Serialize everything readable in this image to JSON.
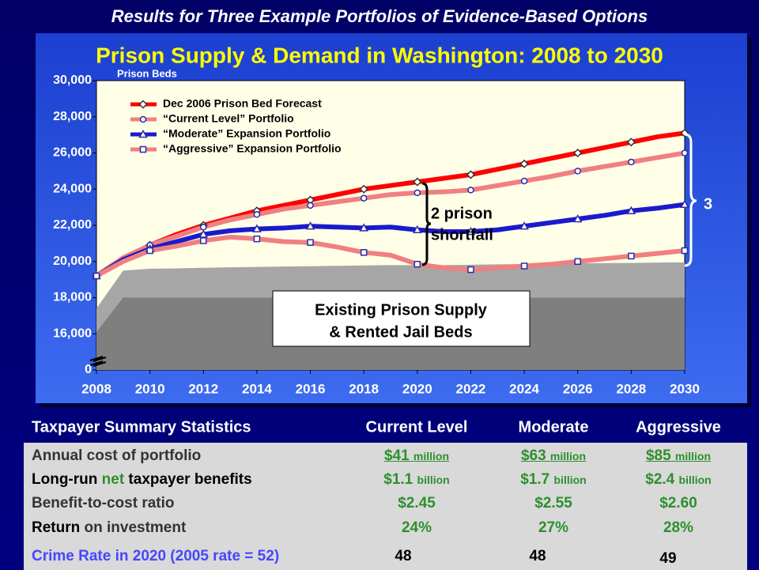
{
  "header": "Results for Three Example Portfolios of Evidence-Based Options",
  "chart_data": {
    "type": "line",
    "title": "Prison Supply & Demand in Washington: 2008 to 2030",
    "y_label": "Prison Beds",
    "x": [
      2008,
      2009,
      2010,
      2011,
      2012,
      2013,
      2014,
      2015,
      2016,
      2017,
      2018,
      2019,
      2020,
      2021,
      2022,
      2023,
      2024,
      2025,
      2026,
      2027,
      2028,
      2029,
      2030
    ],
    "xlim": [
      2008,
      2030
    ],
    "xticks": [
      2008,
      2010,
      2012,
      2014,
      2016,
      2018,
      2020,
      2022,
      2024,
      2026,
      2028,
      2030
    ],
    "ylim": [
      0,
      30000
    ],
    "axis_break": [
      0,
      14000
    ],
    "yticks": [
      0,
      {
        "value": 16000,
        "label": "16,000"
      },
      {
        "value": 18000,
        "label": "18,000"
      },
      {
        "value": 20000,
        "label": "20,000"
      },
      {
        "value": 22000,
        "label": "22,000"
      },
      {
        "value": 24000,
        "label": "24,000"
      },
      {
        "value": 26000,
        "label": "26,000"
      },
      {
        "value": 28000,
        "label": "28,000"
      },
      {
        "value": 30000,
        "label": "30,000"
      }
    ],
    "legend": "upper left",
    "series": [
      {
        "name": "Dec 2006 Prison Bed Forecast",
        "color": "#ff0000",
        "marker": "diamond",
        "values": [
          19200,
          20200,
          20900,
          21500,
          22000,
          22400,
          22800,
          23100,
          23400,
          23700,
          24000,
          24200,
          24400,
          24600,
          24800,
          25100,
          25400,
          25700,
          26000,
          26300,
          26600,
          26900,
          27100
        ]
      },
      {
        "name": "“Current Level” Portfolio",
        "color": "#f08080",
        "marker": "circle",
        "values": [
          19200,
          20200,
          20900,
          21400,
          21900,
          22300,
          22600,
          22900,
          23100,
          23300,
          23500,
          23700,
          23800,
          23850,
          23950,
          24200,
          24450,
          24700,
          25000,
          25250,
          25500,
          25750,
          26000
        ]
      },
      {
        "name": "“Moderate” Expansion Portfolio",
        "color": "#1a1acc",
        "marker": "triangle",
        "values": [
          19200,
          20100,
          20700,
          21100,
          21500,
          21700,
          21800,
          21850,
          21950,
          21900,
          21850,
          21900,
          21750,
          21650,
          21650,
          21750,
          21950,
          22150,
          22350,
          22550,
          22800,
          22950,
          23150
        ]
      },
      {
        "name": "“Aggressive” Expansion Portfolio",
        "color": "#f08080",
        "marker": "square",
        "values": [
          19200,
          20000,
          20600,
          20850,
          21150,
          21350,
          21250,
          21100,
          21050,
          20800,
          20500,
          20350,
          19850,
          19650,
          19550,
          19650,
          19750,
          19850,
          20000,
          20150,
          20300,
          20450,
          20600
        ]
      }
    ],
    "area_series": [
      {
        "color": "#a6a6a6",
        "values": [
          17400,
          19500,
          19600,
          19620,
          19650,
          19680,
          19700,
          19720,
          19740,
          19760,
          19780,
          19800,
          19800,
          19800,
          19820,
          19840,
          19860,
          19880,
          19900,
          19910,
          19920,
          19940,
          19950
        ]
      },
      {
        "color": "#7f7f7f",
        "values": [
          16100,
          18000,
          18000,
          18000,
          18000,
          18000,
          18000,
          18000,
          18000,
          18000,
          18000,
          18000,
          18000,
          18000,
          18000,
          18000,
          18000,
          18000,
          18000,
          18000,
          18000,
          18000,
          18000
        ]
      }
    ],
    "annotations": {
      "supply_box": [
        "Existing Prison Supply",
        "& Rented Jail Beds"
      ],
      "shortfall": [
        "2 prison",
        "shortfall"
      ],
      "right_brace": "3"
    }
  },
  "table": {
    "columns": [
      "Taxpayer Summary Statistics",
      "Current Level",
      "Moderate",
      "Aggressive"
    ],
    "rows": [
      {
        "label": [
          "Annual cost of portfolio"
        ],
        "cells": [
          {
            "amount": "$41",
            "unit": "million"
          },
          {
            "amount": "$63",
            "unit": "million"
          },
          {
            "amount": "$85",
            "unit": "million"
          }
        ]
      },
      {
        "label": [
          "Long-run ",
          "net",
          " taxpayer benefits"
        ],
        "cells": [
          {
            "amount": "$1.1",
            "unit": "billion"
          },
          {
            "amount": "$1.7",
            "unit": "billion"
          },
          {
            "amount": "$2.4",
            "unit": "billion"
          }
        ]
      },
      {
        "label": [
          "Benefit-to-cost ratio"
        ],
        "cells": [
          {
            "amount": "$2.45"
          },
          {
            "amount": "$2.55"
          },
          {
            "amount": "$2.60"
          }
        ]
      },
      {
        "label": [
          "Return",
          " on investment"
        ],
        "cells": [
          {
            "amount": "24%"
          },
          {
            "amount": "27%"
          },
          {
            "amount": "28%"
          }
        ]
      },
      {
        "label": [
          "Crime Rate in 2020 (2005 rate = 52)"
        ],
        "cells": [
          {
            "amount": "48"
          },
          {
            "amount": "48"
          },
          {
            "amount": "49"
          }
        ]
      }
    ]
  }
}
